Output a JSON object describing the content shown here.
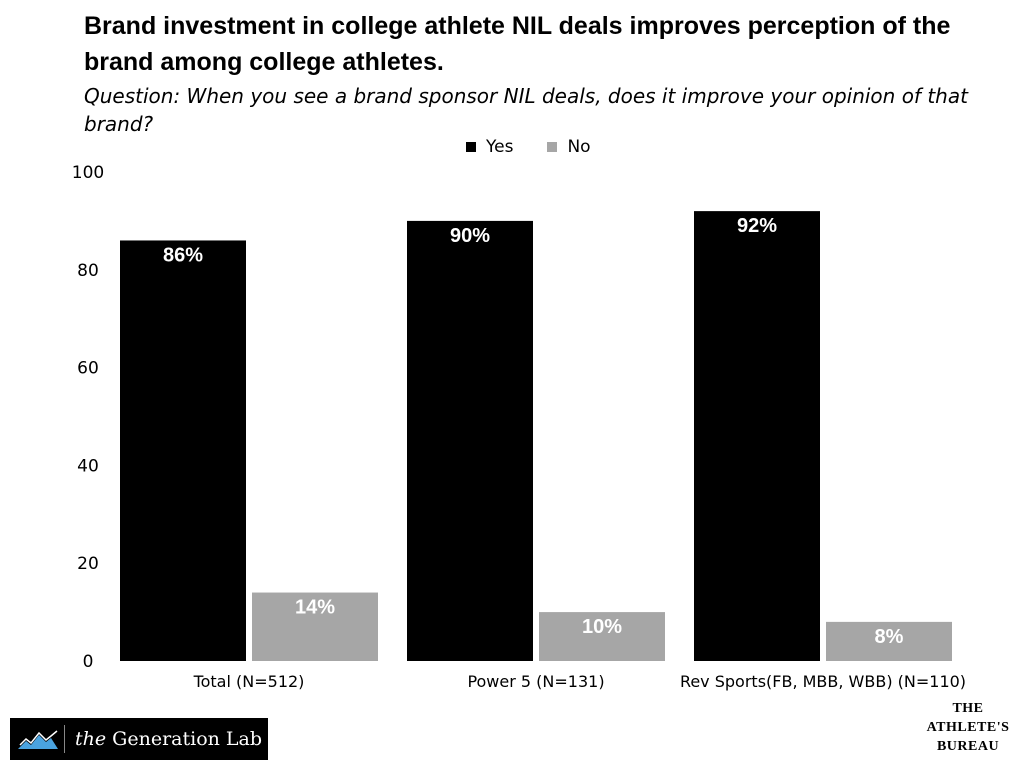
{
  "chart_data": {
    "type": "bar",
    "title": "Brand investment in college athlete NIL deals improves perception of the brand among college athletes.",
    "subtitle": "Question: When you see a brand sponsor NIL deals, does it improve your opinion of that brand?",
    "categories": [
      "Total (N=512)",
      "Power 5 (N=131)",
      "Rev Sports(FB, MBB, WBB) (N=110)"
    ],
    "series": [
      {
        "name": "Yes",
        "color": "#000000",
        "values": [
          86,
          90,
          92
        ],
        "labels": [
          "86%",
          "90%",
          "92%"
        ]
      },
      {
        "name": "No",
        "color": "#a6a6a6",
        "values": [
          14,
          10,
          8
        ],
        "labels": [
          "14%",
          "10%",
          "8%"
        ]
      }
    ],
    "ylim": [
      0,
      100
    ],
    "yticks": [
      0,
      20,
      40,
      60,
      80,
      100
    ],
    "grid": false,
    "legend": "top-center"
  },
  "footer": {
    "left_brand_prefix": "the",
    "left_brand_name": "Generation Lab",
    "right_brand_lines": [
      "THE",
      "ATHLETE'S",
      "BUREAU"
    ]
  }
}
